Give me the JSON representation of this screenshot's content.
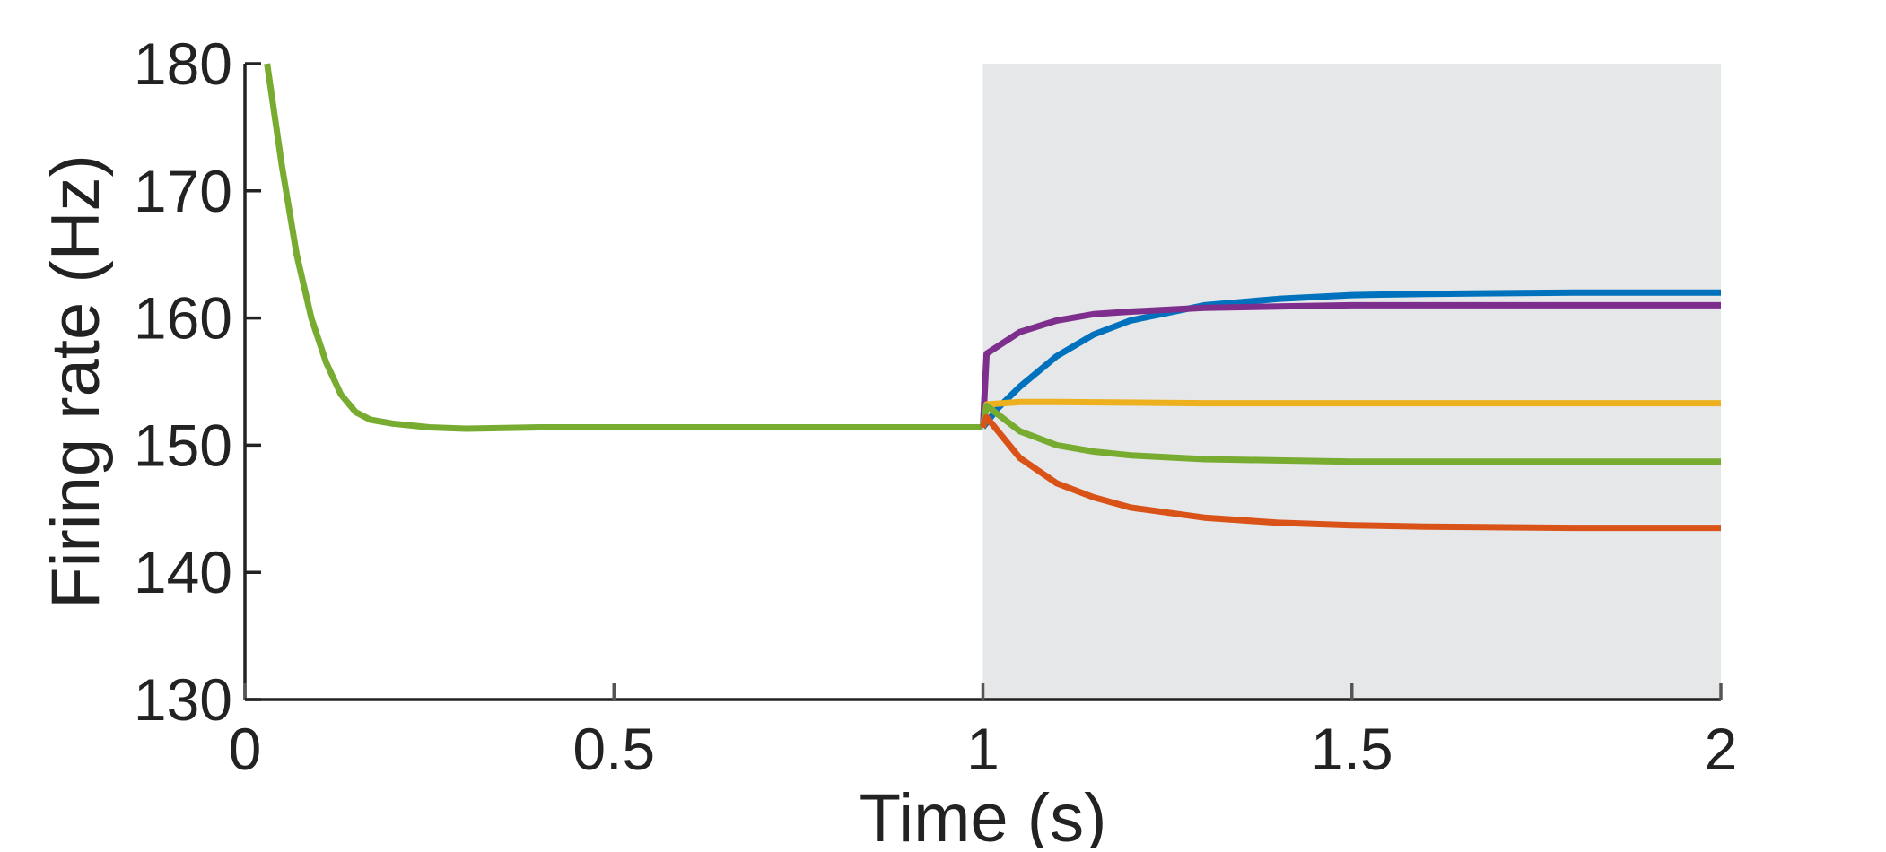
{
  "chart_data": {
    "type": "line",
    "xlabel": "Time (s)",
    "ylabel": "Firing rate (Hz)",
    "xlim": [
      0,
      2
    ],
    "ylim": [
      130,
      180
    ],
    "x_ticks": [
      0,
      0.5,
      1,
      1.5,
      2
    ],
    "x_tick_labels": [
      "0",
      "0.5",
      "1",
      "1.5",
      "2"
    ],
    "y_ticks": [
      130,
      140,
      150,
      160,
      170,
      180
    ],
    "y_tick_labels": [
      "130",
      "140",
      "150",
      "160",
      "170",
      "180"
    ],
    "grid": false,
    "legend": "none",
    "shaded_region": {
      "x_start": 1,
      "x_end": 2,
      "color": "#e6e7e9"
    },
    "series": [
      {
        "color": "#77ac30",
        "x": [
          0.03,
          0.05,
          0.07,
          0.09,
          0.11,
          0.13,
          0.15,
          0.17,
          0.2,
          0.25,
          0.3,
          0.4,
          0.6,
          0.8,
          1.0
        ],
        "y": [
          180,
          172,
          165,
          160,
          156.5,
          154,
          152.6,
          152.0,
          151.7,
          151.4,
          151.3,
          151.4,
          151.4,
          151.4,
          151.4
        ]
      },
      {
        "color": "#0072bd",
        "x": [
          1.0,
          1.02,
          1.05,
          1.1,
          1.15,
          1.2,
          1.3,
          1.4,
          1.5,
          1.6,
          1.8,
          2.0
        ],
        "y": [
          151.4,
          152.9,
          154.6,
          157.0,
          158.7,
          159.8,
          161.0,
          161.5,
          161.8,
          161.9,
          162.0,
          162.0
        ]
      },
      {
        "color": "#7e2f8e",
        "x": [
          1.0,
          1.005,
          1.05,
          1.1,
          1.15,
          1.2,
          1.3,
          1.4,
          1.5,
          1.6,
          1.8,
          2.0
        ],
        "y": [
          151.4,
          157.2,
          158.9,
          159.8,
          160.3,
          160.5,
          160.8,
          160.9,
          161.0,
          161.0,
          161.0,
          161.0
        ]
      },
      {
        "color": "#edb120",
        "x": [
          1.0,
          1.005,
          1.05,
          1.1,
          1.3,
          1.5,
          1.8,
          2.0
        ],
        "y": [
          151.4,
          153.2,
          153.4,
          153.4,
          153.3,
          153.3,
          153.3,
          153.3
        ]
      },
      {
        "color": "#77ac30",
        "x": [
          1.0,
          1.005,
          1.05,
          1.1,
          1.15,
          1.2,
          1.3,
          1.4,
          1.5,
          1.6,
          1.8,
          2.0
        ],
        "y": [
          151.4,
          153.1,
          151.1,
          150.0,
          149.5,
          149.2,
          148.9,
          148.8,
          148.7,
          148.7,
          148.7,
          148.7
        ]
      },
      {
        "color": "#d95319",
        "x": [
          1.0,
          1.005,
          1.05,
          1.1,
          1.15,
          1.2,
          1.3,
          1.4,
          1.5,
          1.6,
          1.8,
          2.0
        ],
        "y": [
          151.4,
          152.2,
          149.0,
          147.0,
          145.9,
          145.1,
          144.3,
          143.9,
          143.7,
          143.6,
          143.5,
          143.5
        ]
      }
    ]
  }
}
